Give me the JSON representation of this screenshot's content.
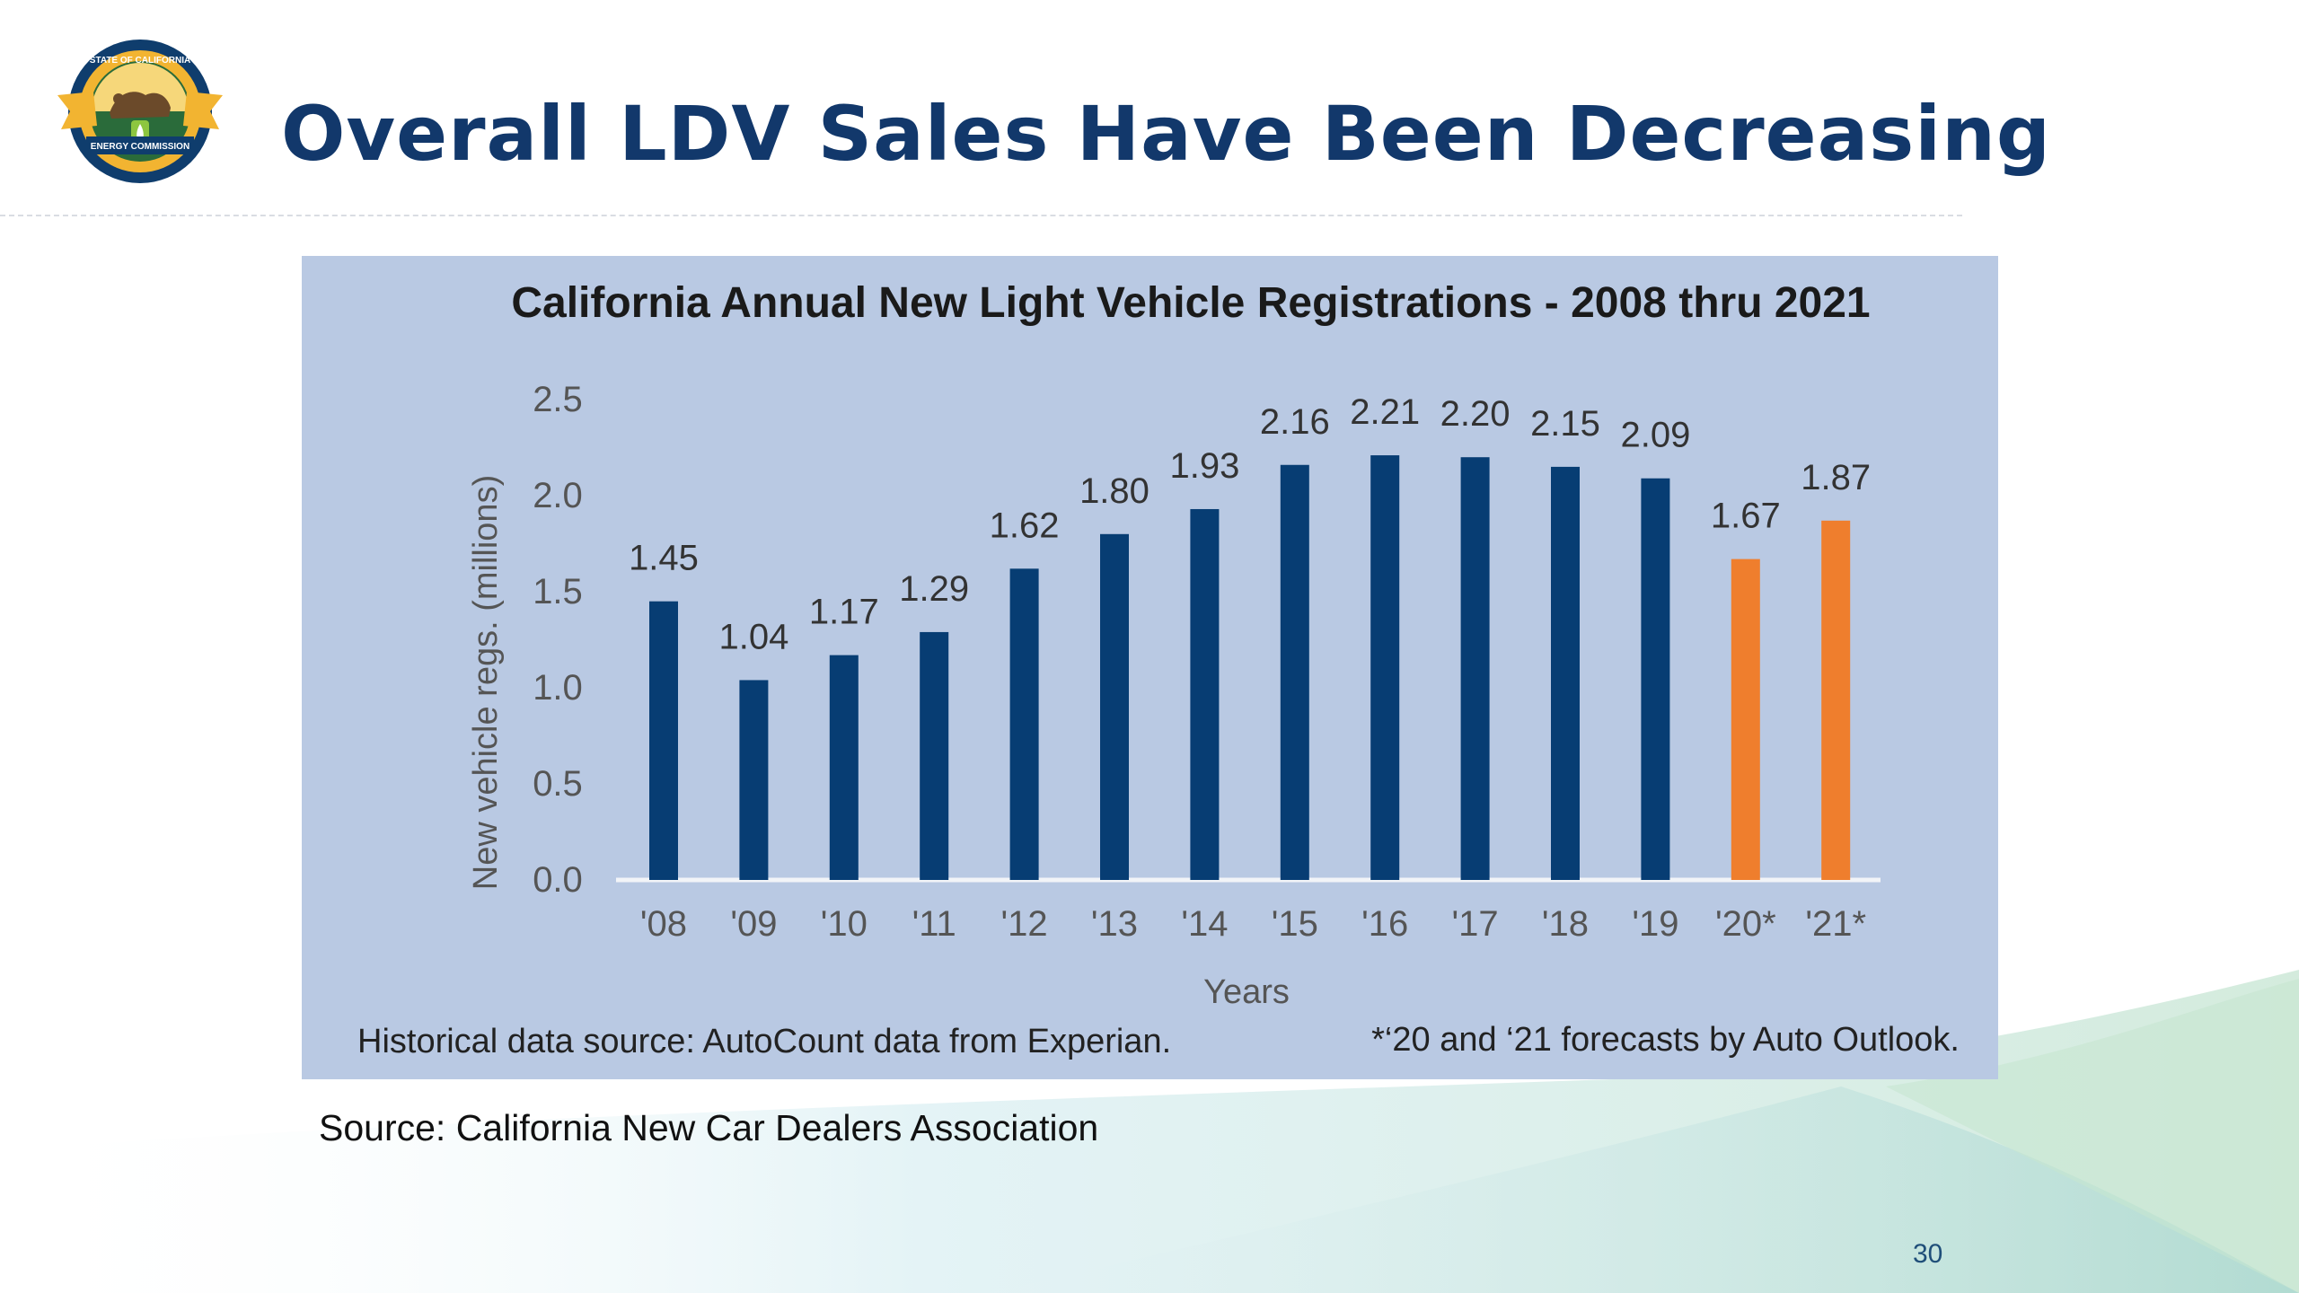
{
  "slide": {
    "title": "Overall LDV Sales Have Been Decreasing",
    "source": "Source: California New Car Dealers Association",
    "page_number": "30"
  },
  "logo": {
    "icon": "california-energy-commission-seal",
    "text_top": "STATE OF CALIFORNIA",
    "text_banner": "ENERGY COMMISSION"
  },
  "colors": {
    "title": "#12386b",
    "panel": "#b9c9e3",
    "historical_bar": "#073d73",
    "forecast_bar": "#ef7e2d"
  },
  "chart_data": {
    "type": "bar",
    "title": "California Annual New Light Vehicle Registrations - 2008 thru 2021",
    "xlabel": "Years",
    "ylabel": "New vehicle regs. (millions)",
    "ylim": [
      0,
      2.5
    ],
    "yticks": [
      "0.0",
      "0.5",
      "1.0",
      "1.5",
      "2.0",
      "2.5"
    ],
    "categories": [
      "'08",
      "'09",
      "'10",
      "'11",
      "'12",
      "'13",
      "'14",
      "'15",
      "'16",
      "'17",
      "'18",
      "'19",
      "'20*",
      "'21*"
    ],
    "values": [
      1.45,
      1.04,
      1.17,
      1.29,
      1.62,
      1.8,
      1.93,
      2.16,
      2.21,
      2.2,
      2.15,
      2.09,
      1.67,
      1.87
    ],
    "value_labels": [
      "1.45",
      "1.04",
      "1.17",
      "1.29",
      "1.62",
      "1.80",
      "1.93",
      "2.16",
      "2.21",
      "2.20",
      "2.15",
      "2.09",
      "1.67",
      "1.87"
    ],
    "forecast": [
      false,
      false,
      false,
      false,
      false,
      false,
      false,
      false,
      false,
      false,
      false,
      false,
      true,
      true
    ],
    "grid": false,
    "footnote_left": "Historical data source: AutoCount data from Experian.",
    "footnote_right": "*‘20 and ‘21 forecasts by Auto Outlook."
  }
}
